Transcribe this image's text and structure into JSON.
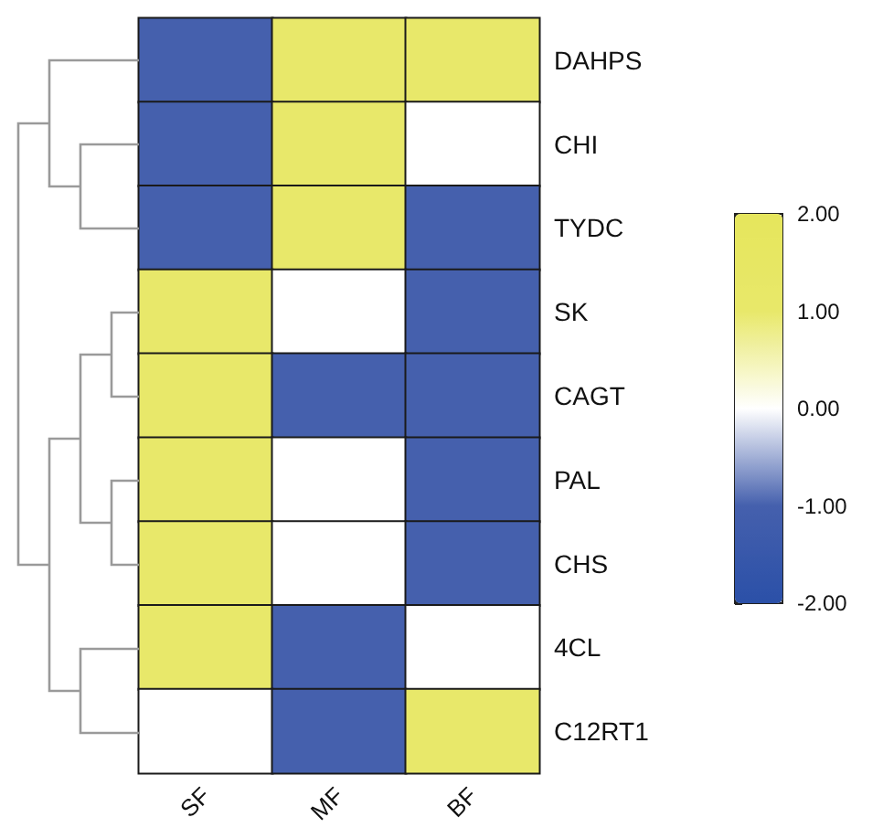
{
  "chart_data": {
    "type": "heatmap",
    "categories": [
      "SF",
      "MF",
      "BF"
    ],
    "y_categories": [
      "DAHPS",
      "CHI",
      "TYDC",
      "SK",
      "CAGT",
      "PAL",
      "CHS",
      "4CL",
      "C12RT1"
    ],
    "cells": [
      [
        -1,
        1,
        1
      ],
      [
        -1,
        1,
        0
      ],
      [
        -1,
        1,
        -1
      ],
      [
        1,
        0,
        -1
      ],
      [
        1,
        -1,
        -1
      ],
      [
        1,
        0,
        -1
      ],
      [
        1,
        0,
        -1
      ],
      [
        1,
        -1,
        0
      ],
      [
        0,
        -1,
        1
      ]
    ],
    "clim": [
      -2,
      2
    ],
    "cticks": [
      {
        "value": 2,
        "label": "2.00"
      },
      {
        "value": 1,
        "label": "1.00"
      },
      {
        "value": 0,
        "label": "0.00"
      },
      {
        "value": -1,
        "label": "-1.00"
      },
      {
        "value": -2,
        "label": "-2.00"
      }
    ],
    "colors": [
      "#e6e65c",
      "#e8e86a",
      "#ffffff",
      "#4560ad",
      "#2b50a8"
    ]
  }
}
